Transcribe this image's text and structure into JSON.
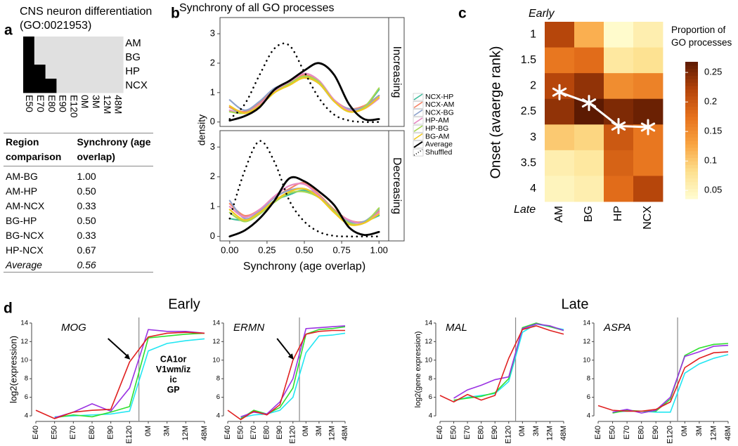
{
  "chart_data": [
    {
      "type": "binary_grid",
      "panel_label": "a",
      "title": "CNS neuron differentiation",
      "subtitle": "(GO:0021953)",
      "rows": [
        "AM",
        "BG",
        "HP",
        "NCX"
      ],
      "columns": [
        "E50",
        "E70",
        "E80",
        "E90",
        "E120",
        "0M",
        "3M",
        "12M",
        "48M"
      ],
      "values": [
        [
          1,
          0,
          0,
          0,
          0,
          0,
          0,
          0,
          0
        ],
        [
          1,
          0,
          0,
          0,
          0,
          0,
          0,
          0,
          0
        ],
        [
          1,
          1,
          0,
          0,
          0,
          0,
          0,
          0,
          0
        ],
        [
          1,
          1,
          1,
          0,
          0,
          0,
          0,
          0,
          0
        ]
      ],
      "colors": [
        "#e0e0e0",
        "#000000"
      ]
    },
    {
      "type": "table",
      "columns": [
        "Region comparison",
        "Synchrony (age overlap)"
      ],
      "rows": [
        [
          "AM-BG",
          "1.00"
        ],
        [
          "AM-HP",
          "0.50"
        ],
        [
          "AM-NCX",
          "0.33"
        ],
        [
          "BG-HP",
          "0.50"
        ],
        [
          "BG-NCX",
          "0.33"
        ],
        [
          "HP-NCX",
          "0.67"
        ],
        [
          "Average",
          "0.56"
        ]
      ],
      "italic_last_row": true
    },
    {
      "type": "density",
      "panel_label": "b",
      "title": "Synchrony of all GO processes",
      "xlabel": "Synchrony (age overlap)",
      "ylabel": "density",
      "facets": [
        "Increasing",
        "Decreasing"
      ],
      "x": [
        0,
        0.1,
        0.2,
        0.3,
        0.4,
        0.5,
        0.6,
        0.7,
        0.8,
        0.9,
        1
      ],
      "xlim": [
        -0.065,
        1.065
      ],
      "xticks": [
        {
          "value": 0,
          "label": "0.00"
        },
        0.25,
        {
          "value": 0.5,
          "label": "0.50"
        },
        0.75,
        {
          "value": 1,
          "label": "1.00"
        }
      ],
      "ylim": [
        -0.15,
        3.55
      ],
      "yticks": [
        0,
        1,
        2,
        3
      ],
      "series": [
        {
          "name": "NCX-HP",
          "color": "#3dbb9c",
          "style": "solid",
          "values": [
            [
              0.5,
              0.3,
              0.6,
              1.1,
              1.3,
              1.55,
              1.3,
              0.7,
              0.4,
              0.5,
              1.1
            ],
            [
              0.6,
              0.55,
              0.8,
              1.2,
              1.4,
              1.55,
              1.3,
              0.9,
              0.5,
              0.5,
              0.7
            ]
          ]
        },
        {
          "name": "NCX-AM",
          "color": "#f4876a",
          "style": "solid",
          "values": [
            [
              0.5,
              0.35,
              0.65,
              1.1,
              1.35,
              1.6,
              1.35,
              0.75,
              0.45,
              0.55,
              0.9
            ],
            [
              1.1,
              0.7,
              0.9,
              1.3,
              1.6,
              1.8,
              1.4,
              0.9,
              0.55,
              0.5,
              0.85
            ]
          ]
        },
        {
          "name": "NCX-BG",
          "color": "#8fa3cc",
          "style": "solid",
          "values": [
            [
              0.75,
              0.4,
              0.7,
              1.15,
              1.3,
              1.5,
              1.3,
              0.7,
              0.45,
              0.5,
              0.9
            ],
            [
              1.2,
              0.6,
              0.85,
              1.3,
              1.55,
              1.6,
              1.35,
              0.85,
              0.5,
              0.5,
              0.9
            ]
          ]
        },
        {
          "name": "HP-AM",
          "color": "#e78ac3",
          "style": "solid",
          "values": [
            [
              0.4,
              0.3,
              0.6,
              1.05,
              1.35,
              1.65,
              1.4,
              0.75,
              0.4,
              0.45,
              0.8
            ],
            [
              1.0,
              0.65,
              0.9,
              1.35,
              1.7,
              1.75,
              1.35,
              0.85,
              0.55,
              0.45,
              0.8
            ]
          ]
        },
        {
          "name": "HP-BG",
          "color": "#a6d854",
          "style": "solid",
          "values": [
            [
              0.35,
              0.3,
              0.55,
              1.0,
              1.3,
              1.55,
              1.35,
              0.7,
              0.35,
              0.5,
              1.15
            ],
            [
              0.8,
              0.5,
              0.75,
              1.15,
              1.45,
              1.5,
              1.3,
              0.85,
              0.45,
              0.45,
              0.95
            ]
          ]
        },
        {
          "name": "BG-AM",
          "color": "#f2c81e",
          "style": "solid",
          "values": [
            [
              0.55,
              0.3,
              0.55,
              1.0,
              1.25,
              1.5,
              1.3,
              0.7,
              0.35,
              0.45,
              0.85
            ],
            [
              0.9,
              0.55,
              0.8,
              1.2,
              1.5,
              1.6,
              1.3,
              0.8,
              0.4,
              0.45,
              0.75
            ]
          ]
        },
        {
          "name": "Average",
          "color": "#000000",
          "style": "bold",
          "values": [
            [
              0.05,
              0.2,
              0.5,
              1.1,
              1.4,
              1.75,
              2.0,
              1.6,
              0.6,
              0.1,
              0.1
            ],
            [
              0,
              0.2,
              0.6,
              1.2,
              1.95,
              1.85,
              1.5,
              1.05,
              0.3,
              0.05,
              0.15
            ]
          ]
        },
        {
          "name": "Shuffled",
          "color": "#000000",
          "style": "dotted",
          "values": [
            [
              0.1,
              0.6,
              1.6,
              2.5,
              2.6,
              1.7,
              0.8,
              0.25,
              0.05,
              0,
              0
            ],
            [
              0.6,
              2.2,
              3.2,
              2.5,
              1.2,
              0.5,
              0.15,
              0.02,
              0,
              0,
              0
            ]
          ]
        }
      ]
    },
    {
      "type": "heatmap",
      "panel_label": "c",
      "ylabel": "Onset (avaerge rank)",
      "rows": [
        1,
        1.5,
        2,
        2.5,
        3,
        3.5,
        4
      ],
      "columns": [
        "AM",
        "BG",
        "HP",
        "NCX"
      ],
      "values": [
        [
          0.22,
          0.12,
          0.04,
          0.06
        ],
        [
          0.17,
          0.18,
          0.07,
          0.08
        ],
        [
          0.22,
          0.24,
          0.15,
          0.16
        ],
        [
          0.24,
          0.27,
          0.25,
          0.26
        ],
        [
          0.1,
          0.09,
          0.2,
          0.17
        ],
        [
          0.06,
          0.07,
          0.19,
          0.17
        ],
        [
          0.05,
          0.06,
          0.18,
          0.22
        ]
      ],
      "ylim": [
        0.75,
        4.25
      ],
      "annotations": [
        "Early",
        "Late"
      ],
      "markers": [
        2.12,
        2.33,
        2.78,
        2.8
      ],
      "marker_color": "#ffffff",
      "colorbar_title": "Proportion of GO processes",
      "clim": [
        0.036,
        0.268
      ],
      "cticks": [
        0.05,
        0.1,
        0.15,
        0.2,
        0.25
      ],
      "colormap": [
        "#fffdd2",
        "#fde08e",
        "#f9a441",
        "#e6711c",
        "#b4440a",
        "#5c1a02"
      ]
    },
    {
      "type": "line",
      "panel_label": "d",
      "group_labels": [
        "Early",
        "Late"
      ],
      "categories": [
        "E40",
        "E50",
        "E70",
        "E80",
        "E90",
        "E120",
        "0M",
        "3M",
        "12M",
        "48M"
      ],
      "ylim": [
        3.4,
        14.6
      ],
      "yticks": [
        4,
        6,
        8,
        10,
        12,
        14
      ],
      "divider": true,
      "panels": [
        {
          "title": "MOG",
          "ylabel": "log2(expression)",
          "arrow": true,
          "legend": true
        },
        {
          "title": "ERMN",
          "arrow": true
        },
        {
          "title": "MAL",
          "ylabel": "log2(gene expression)"
        },
        {
          "title": "ASPA"
        }
      ],
      "series": [
        {
          "name": "CA1or",
          "color": "#22e6f2",
          "values": [
            [
              null,
              3.9,
              4.0,
              4.1,
              4.2,
              4.5,
              11.0,
              11.8,
              12.1,
              12.3
            ],
            [
              null,
              3.8,
              4.1,
              4.2,
              4.6,
              6.0,
              10.8,
              12.6,
              12.7,
              12.9
            ],
            [
              null,
              5.6,
              6.0,
              6.2,
              6.4,
              7.7,
              13.0,
              13.9,
              13.6,
              13.3
            ],
            [
              null,
              4.4,
              4.5,
              4.5,
              4.4,
              4.4,
              8.6,
              9.6,
              10.2,
              10.6
            ]
          ]
        },
        {
          "name": "V1wm/iz",
          "color": "#2ee02e",
          "values": [
            [
              null,
              3.8,
              4.1,
              3.9,
              4.4,
              5.0,
              12.4,
              12.6,
              12.8,
              12.9
            ],
            [
              null,
              3.7,
              4.6,
              4.2,
              4.9,
              7.0,
              12.8,
              13.3,
              13.4,
              13.6
            ],
            [
              null,
              5.7,
              5.9,
              6.1,
              6.5,
              8.0,
              13.5,
              14.0,
              13.6,
              13.2
            ],
            [
              null,
              4.3,
              4.6,
              4.5,
              4.5,
              5.8,
              10.5,
              11.3,
              11.7,
              11.8
            ]
          ]
        },
        {
          "name": "ic",
          "color": "#9a32e2",
          "values": [
            [
              null,
              3.8,
              4.4,
              5.3,
              4.5,
              7.0,
              13.3,
              13.1,
              13.1,
              12.9
            ],
            [
              null,
              3.9,
              4.4,
              4.2,
              5.5,
              8.0,
              13.4,
              13.5,
              13.6,
              13.7
            ],
            [
              null,
              5.9,
              6.8,
              7.3,
              7.9,
              8.2,
              13.4,
              13.9,
              13.7,
              13.2
            ],
            [
              null,
              4.4,
              4.7,
              4.3,
              4.6,
              6.0,
              10.4,
              10.9,
              11.5,
              11.6
            ]
          ]
        },
        {
          "name": "GP",
          "color": "#e02020",
          "values": [
            [
              4.6,
              3.7,
              4.4,
              4.6,
              4.7,
              9.8,
              12.5,
              12.9,
              13.0,
              12.9
            ],
            [
              4.6,
              3.6,
              4.5,
              4.1,
              5.2,
              10.0,
              12.8,
              13.1,
              13.2,
              13.2
            ],
            [
              6.2,
              5.5,
              6.3,
              5.7,
              6.2,
              10.2,
              13.3,
              13.7,
              13.2,
              12.8
            ],
            [
              5.1,
              4.6,
              4.5,
              4.5,
              4.7,
              5.5,
              9.2,
              10.2,
              10.8,
              10.9
            ]
          ]
        }
      ]
    }
  ]
}
